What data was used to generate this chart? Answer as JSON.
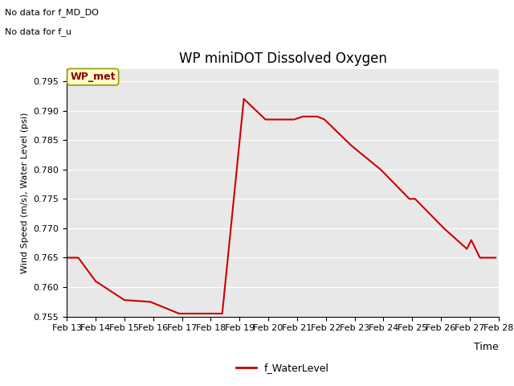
{
  "title": "WP miniDOT Dissolved Oxygen",
  "xlabel": "Time",
  "ylabel": "Wind Speed (m/s), Water Level (psi)",
  "ylim": [
    0.755,
    0.797
  ],
  "yticks": [
    0.755,
    0.76,
    0.765,
    0.77,
    0.775,
    0.78,
    0.785,
    0.79,
    0.795
  ],
  "no_data_text1": "No data for f_MD_DO",
  "no_data_text2": "No data for f_u",
  "legend_label": "f_WaterLevel",
  "line_color": "#cc0000",
  "bg_color": "#e8e8e8",
  "wp_met_box_color": "#ffffcc",
  "wp_met_text_color": "#8b0000",
  "x_numeric": [
    13.0,
    13.4,
    14.0,
    15.0,
    15.9,
    16.9,
    17.2,
    17.9,
    18.4,
    19.15,
    19.9,
    20.9,
    21.2,
    21.7,
    21.95,
    22.9,
    23.9,
    24.9,
    25.1,
    25.9,
    26.1,
    26.9,
    27.05,
    27.35,
    27.9
  ],
  "y_values": [
    0.765,
    0.765,
    0.761,
    0.7578,
    0.7575,
    0.7555,
    0.7555,
    0.7555,
    0.7555,
    0.792,
    0.7885,
    0.7885,
    0.789,
    0.789,
    0.7885,
    0.784,
    0.78,
    0.775,
    0.775,
    0.771,
    0.77,
    0.7665,
    0.768,
    0.765,
    0.765
  ],
  "xtick_labels": [
    "Feb 13",
    "Feb 14",
    "Feb 15",
    "Feb 16",
    "Feb 17",
    "Feb 18",
    "Feb 19",
    "Feb 20",
    "Feb 21",
    "Feb 22",
    "Feb 23",
    "Feb 24",
    "Feb 25",
    "Feb 26",
    "Feb 27",
    "Feb 28"
  ],
  "xtick_positions": [
    13,
    14,
    15,
    16,
    17,
    18,
    19,
    20,
    21,
    22,
    23,
    24,
    25,
    26,
    27,
    28
  ],
  "xlim": [
    13,
    28
  ]
}
